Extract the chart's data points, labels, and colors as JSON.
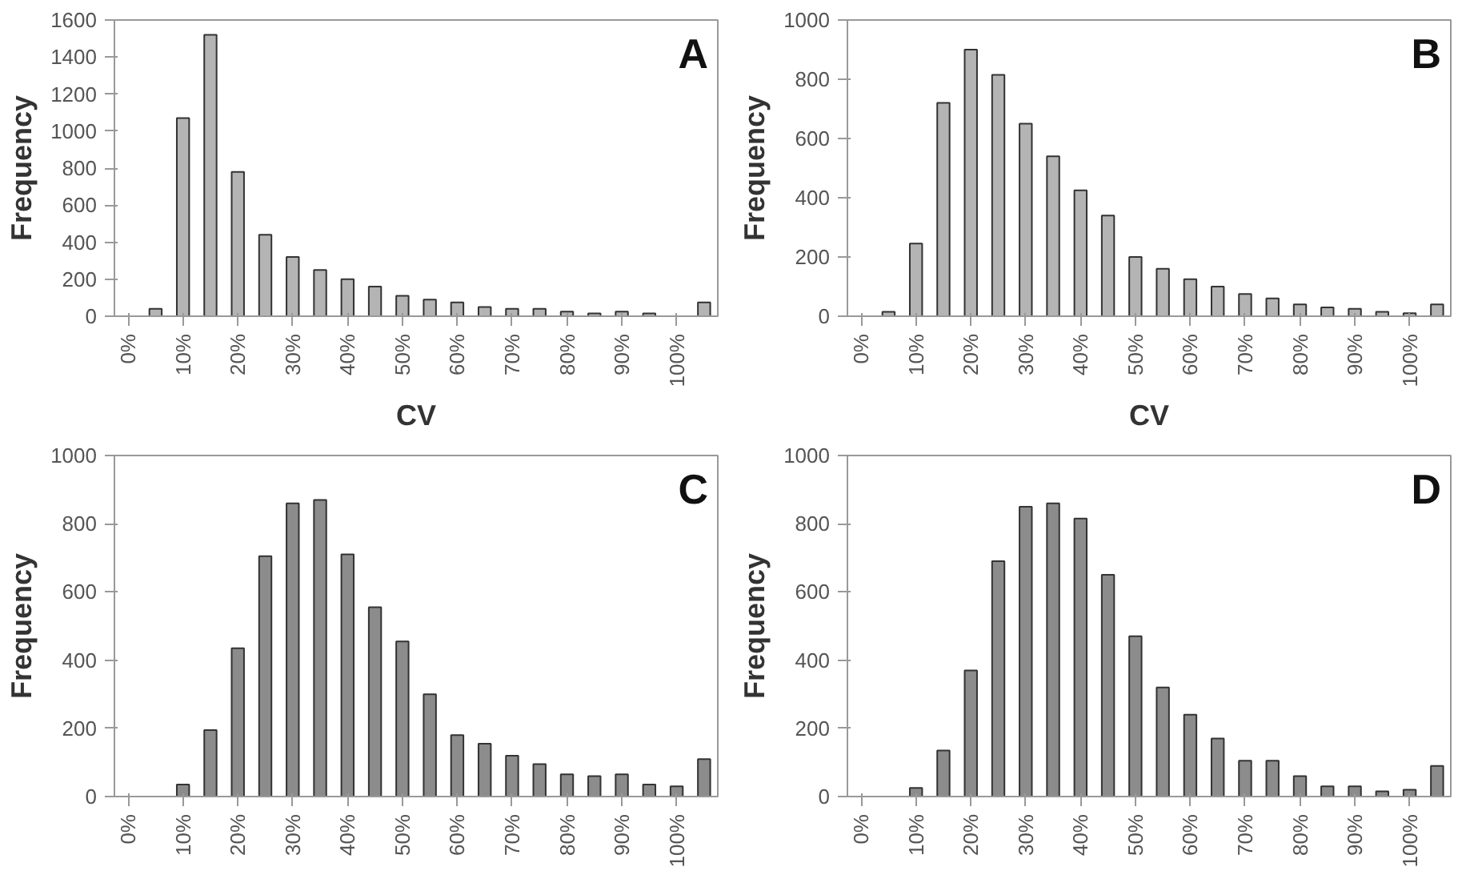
{
  "chart_data": [
    {
      "type": "bar",
      "title": "A",
      "xlabel": "CV",
      "ylabel": "Frequency",
      "categories": [
        "0%",
        null,
        "10%",
        null,
        "20%",
        null,
        "30%",
        null,
        "40%",
        null,
        "50%",
        null,
        "60%",
        null,
        "70%",
        null,
        "80%",
        null,
        "90%",
        null,
        "100%",
        null
      ],
      "values": [
        0,
        40,
        1070,
        1520,
        780,
        440,
        320,
        250,
        200,
        160,
        110,
        90,
        75,
        50,
        40,
        40,
        25,
        15,
        25,
        15,
        0,
        75
      ],
      "color": "#b4b4b4",
      "ylim": [
        0,
        1600
      ],
      "yticks": [
        0,
        200,
        400,
        600,
        800,
        1000,
        1200,
        1400,
        1600
      ],
      "grid": false
    },
    {
      "type": "bar",
      "title": "B",
      "xlabel": "CV",
      "ylabel": "Frequency",
      "categories": [
        "0%",
        null,
        "10%",
        null,
        "20%",
        null,
        "30%",
        null,
        "40%",
        null,
        "50%",
        null,
        "60%",
        null,
        "70%",
        null,
        "80%",
        null,
        "90%",
        null,
        "100%",
        null
      ],
      "values": [
        0,
        15,
        245,
        720,
        900,
        815,
        650,
        540,
        425,
        340,
        200,
        160,
        125,
        100,
        75,
        60,
        40,
        30,
        25,
        15,
        10,
        40
      ],
      "color": "#b4b4b4",
      "ylim": [
        0,
        1000
      ],
      "yticks": [
        0,
        200,
        400,
        600,
        800,
        1000
      ],
      "grid": false
    },
    {
      "type": "bar",
      "title": "C",
      "ylabel": "Frequency",
      "categories": [
        "0%",
        null,
        "10%",
        null,
        "20%",
        null,
        "30%",
        null,
        "40%",
        null,
        "50%",
        null,
        "60%",
        null,
        "70%",
        null,
        "80%",
        null,
        "90%",
        null,
        "100%",
        null
      ],
      "values": [
        0,
        0,
        35,
        195,
        435,
        705,
        860,
        870,
        710,
        555,
        455,
        300,
        180,
        155,
        120,
        95,
        65,
        60,
        65,
        35,
        30,
        110
      ],
      "color": "#8c8c8c",
      "ylim": [
        0,
        1000
      ],
      "yticks": [
        0,
        200,
        400,
        600,
        800,
        1000
      ],
      "grid": false
    },
    {
      "type": "bar",
      "title": "D",
      "ylabel": "Frequency",
      "categories": [
        "0%",
        null,
        "10%",
        null,
        "20%",
        null,
        "30%",
        null,
        "40%",
        null,
        "50%",
        null,
        "60%",
        null,
        "70%",
        null,
        "80%",
        null,
        "90%",
        null,
        "100%",
        null
      ],
      "values": [
        0,
        0,
        25,
        135,
        370,
        690,
        850,
        860,
        815,
        650,
        470,
        320,
        240,
        170,
        105,
        105,
        60,
        30,
        30,
        15,
        20,
        90
      ],
      "color": "#8c8c8c",
      "ylim": [
        0,
        1000
      ],
      "yticks": [
        0,
        200,
        400,
        600,
        800,
        1000
      ],
      "grid": false
    }
  ]
}
